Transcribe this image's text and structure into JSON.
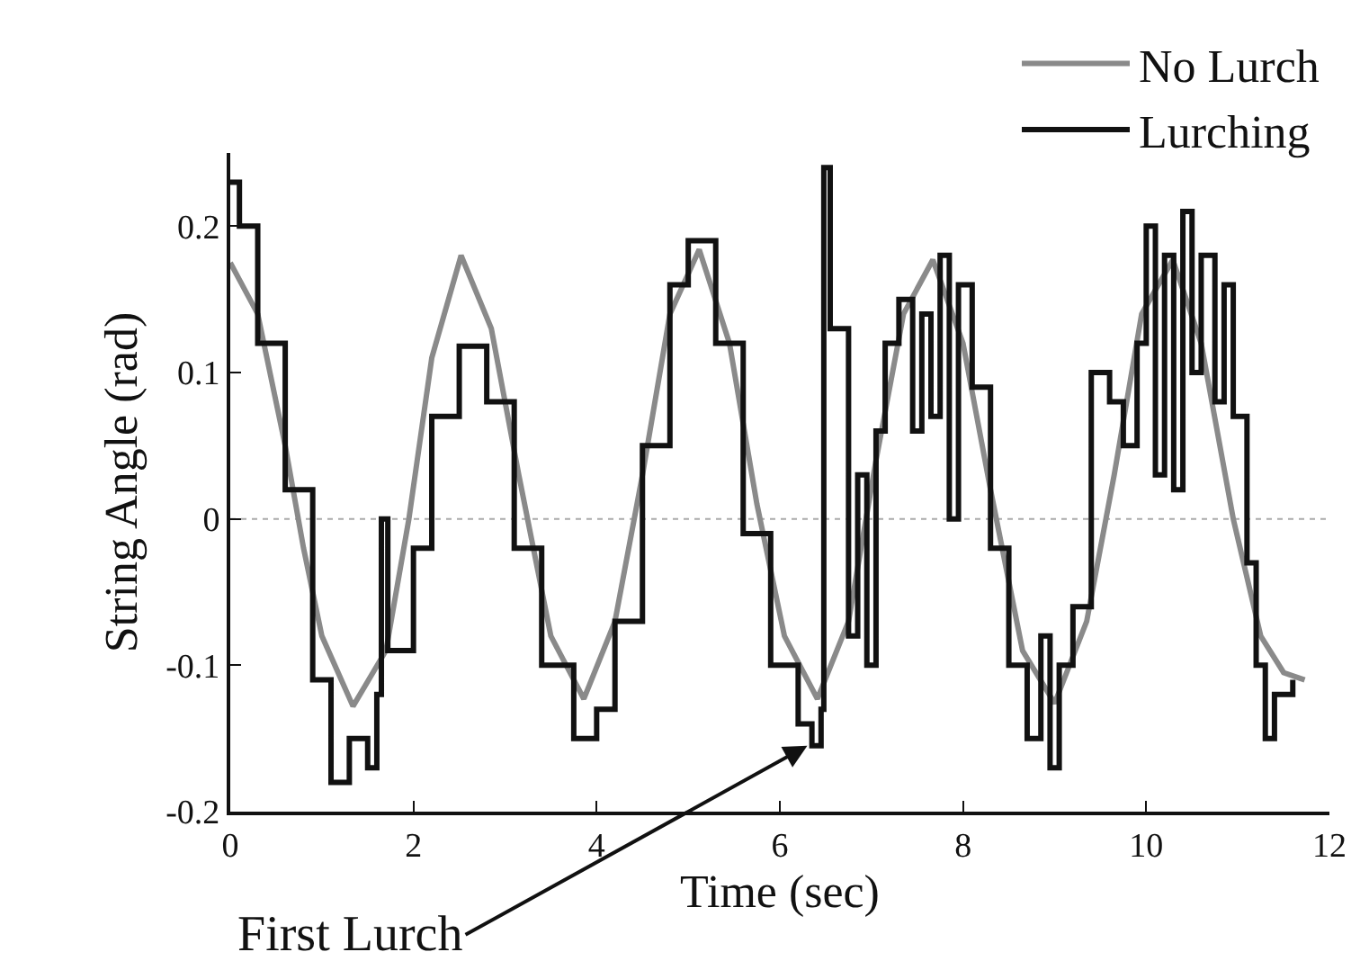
{
  "chart_data": {
    "type": "line",
    "xlabel": "Time (sec)",
    "ylabel": "String Angle (rad)",
    "xlim": [
      0,
      12
    ],
    "xticks": [
      0,
      2,
      4,
      6,
      8,
      10,
      12
    ],
    "ylim": [
      -0.2,
      0.25
    ],
    "yticks": [
      -0.2,
      -0.1,
      0,
      0.1,
      0.2
    ],
    "grid": false,
    "legend": "top right",
    "ref_lines": [
      {
        "axis": "y",
        "value": 0,
        "color": "#aaaaaa",
        "line_style": "dotted"
      }
    ],
    "annotations": [
      {
        "text": "First Lurch",
        "x": 6.3,
        "y": -0.155
      }
    ],
    "series": [
      {
        "name": "No Lurch",
        "color": "#8a8a8a",
        "x": [
          0,
          0.3,
          0.6,
          0.8,
          1.0,
          1.34,
          1.7,
          1.95,
          2.2,
          2.52,
          2.85,
          3.15,
          3.5,
          3.86,
          4.2,
          4.5,
          4.8,
          5.12,
          5.45,
          5.75,
          6.05,
          6.41,
          6.75,
          7.05,
          7.35,
          7.67,
          8.0,
          8.3,
          8.65,
          9.0,
          9.35,
          9.65,
          9.95,
          10.29,
          10.6,
          10.95,
          11.25,
          11.5,
          11.73
        ],
        "values": [
          0.175,
          0.14,
          0.05,
          -0.02,
          -0.08,
          -0.128,
          -0.09,
          0.0,
          0.11,
          0.18,
          0.13,
          0.03,
          -0.08,
          -0.123,
          -0.07,
          0.03,
          0.14,
          0.184,
          0.12,
          0.01,
          -0.08,
          -0.123,
          -0.07,
          0.04,
          0.14,
          0.177,
          0.12,
          0.02,
          -0.09,
          -0.126,
          -0.07,
          0.03,
          0.14,
          0.177,
          0.12,
          0.0,
          -0.08,
          -0.105,
          -0.11
        ]
      },
      {
        "name": "Lurching",
        "color": "#111111",
        "type": "step",
        "x": [
          0,
          0.1,
          0.3,
          0.6,
          0.9,
          1.1,
          1.3,
          1.5,
          1.6,
          1.65,
          1.72,
          2.0,
          2.2,
          2.5,
          2.8,
          3.1,
          3.4,
          3.75,
          4.0,
          4.2,
          4.5,
          4.8,
          5.0,
          5.3,
          5.6,
          5.9,
          6.2,
          6.35,
          6.45,
          6.48,
          6.55,
          6.7,
          6.75,
          6.85,
          6.95,
          7.05,
          7.15,
          7.3,
          7.45,
          7.55,
          7.65,
          7.75,
          7.85,
          7.95,
          8.1,
          8.3,
          8.5,
          8.7,
          8.85,
          8.95,
          9.05,
          9.2,
          9.4,
          9.6,
          9.75,
          9.9,
          10.0,
          10.1,
          10.2,
          10.3,
          10.4,
          10.5,
          10.6,
          10.75,
          10.85,
          10.95,
          11.1,
          11.2,
          11.3,
          11.4,
          11.6
        ],
        "values": [
          0.23,
          0.2,
          0.12,
          0.02,
          -0.11,
          -0.18,
          -0.15,
          -0.17,
          -0.12,
          0.0,
          -0.09,
          -0.02,
          0.07,
          0.118,
          0.08,
          -0.02,
          -0.1,
          -0.15,
          -0.13,
          -0.07,
          0.05,
          0.16,
          0.19,
          0.12,
          -0.01,
          -0.1,
          -0.14,
          -0.155,
          -0.13,
          0.24,
          0.13,
          0.13,
          -0.08,
          0.03,
          -0.1,
          0.06,
          0.12,
          0.15,
          0.06,
          0.14,
          0.07,
          0.18,
          0.0,
          0.16,
          0.09,
          -0.02,
          -0.1,
          -0.15,
          -0.08,
          -0.17,
          -0.1,
          -0.06,
          0.1,
          0.08,
          0.05,
          0.12,
          0.2,
          0.03,
          0.18,
          0.02,
          0.21,
          0.1,
          0.18,
          0.08,
          0.16,
          0.07,
          -0.03,
          -0.1,
          -0.15,
          -0.12,
          -0.11
        ]
      }
    ]
  }
}
